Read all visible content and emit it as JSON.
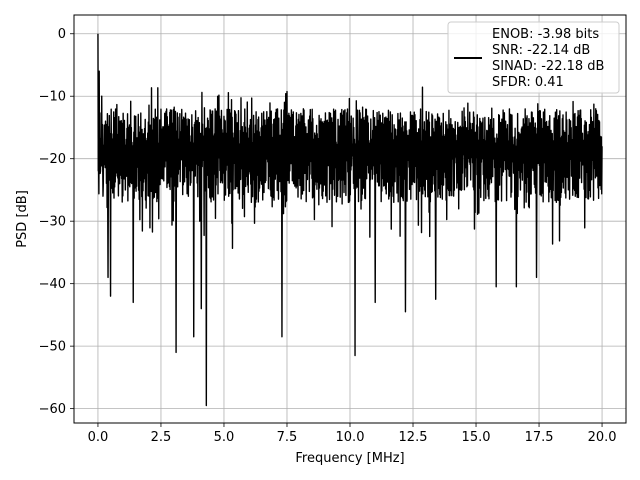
{
  "chart_data": {
    "type": "line",
    "xlabel": "Frequency [MHz]",
    "ylabel": "PSD [dB]",
    "xlim": [
      -0.95,
      20.95
    ],
    "ylim": [
      -62.3,
      3.0
    ],
    "xticks": [
      0.0,
      2.5,
      5.0,
      7.5,
      10.0,
      12.5,
      15.0,
      17.5,
      20.0
    ],
    "xtick_labels": [
      "0.0",
      "2.5",
      "5.0",
      "7.5",
      "10.0",
      "12.5",
      "15.0",
      "17.5",
      "20.0"
    ],
    "yticks": [
      0,
      -10,
      -20,
      -30,
      -40,
      -50,
      -60
    ],
    "ytick_labels": [
      "0",
      "−10",
      "−20",
      "−30",
      "−40",
      "−50",
      "−60"
    ],
    "grid": true,
    "legend_position": "top-right",
    "series": [
      {
        "name": "ENOB: -3.98 bits\nSNR: -22.14 dB\nSINAD: -22.18 dB\nSFDR: 0.41",
        "color": "#000000",
        "description_values": "noisy PSD trace, roughly -10 to -30 dB band with deep dips",
        "x": [
          0.0,
          0.02,
          0.05,
          0.1,
          0.15,
          0.2,
          0.3,
          0.4,
          0.5,
          1.4,
          3.1,
          3.8,
          4.1,
          4.3,
          7.3,
          10.2,
          11.0,
          12.2,
          13.4,
          15.8,
          16.6,
          17.4,
          20.0
        ],
        "y": [
          0.0,
          -19.0,
          -6.0,
          -22.0,
          -10.0,
          -26.0,
          -14.0,
          -39.0,
          -42.0,
          -43.0,
          -51.0,
          -48.5,
          -44.0,
          -59.5,
          -48.5,
          -51.5,
          -43.0,
          -44.5,
          -42.5,
          -40.5,
          -40.5,
          -39.0,
          -18.0
        ],
        "envelope": {
          "upper": -10.0,
          "lower": -30.0,
          "typical_top": -12.0,
          "typical_bottom": -27.0
        }
      }
    ],
    "legend": {
      "lines": [
        "ENOB: -3.98 bits",
        "SNR: -22.14 dB",
        "SINAD: -22.18 dB",
        "SFDR: 0.41"
      ]
    }
  }
}
